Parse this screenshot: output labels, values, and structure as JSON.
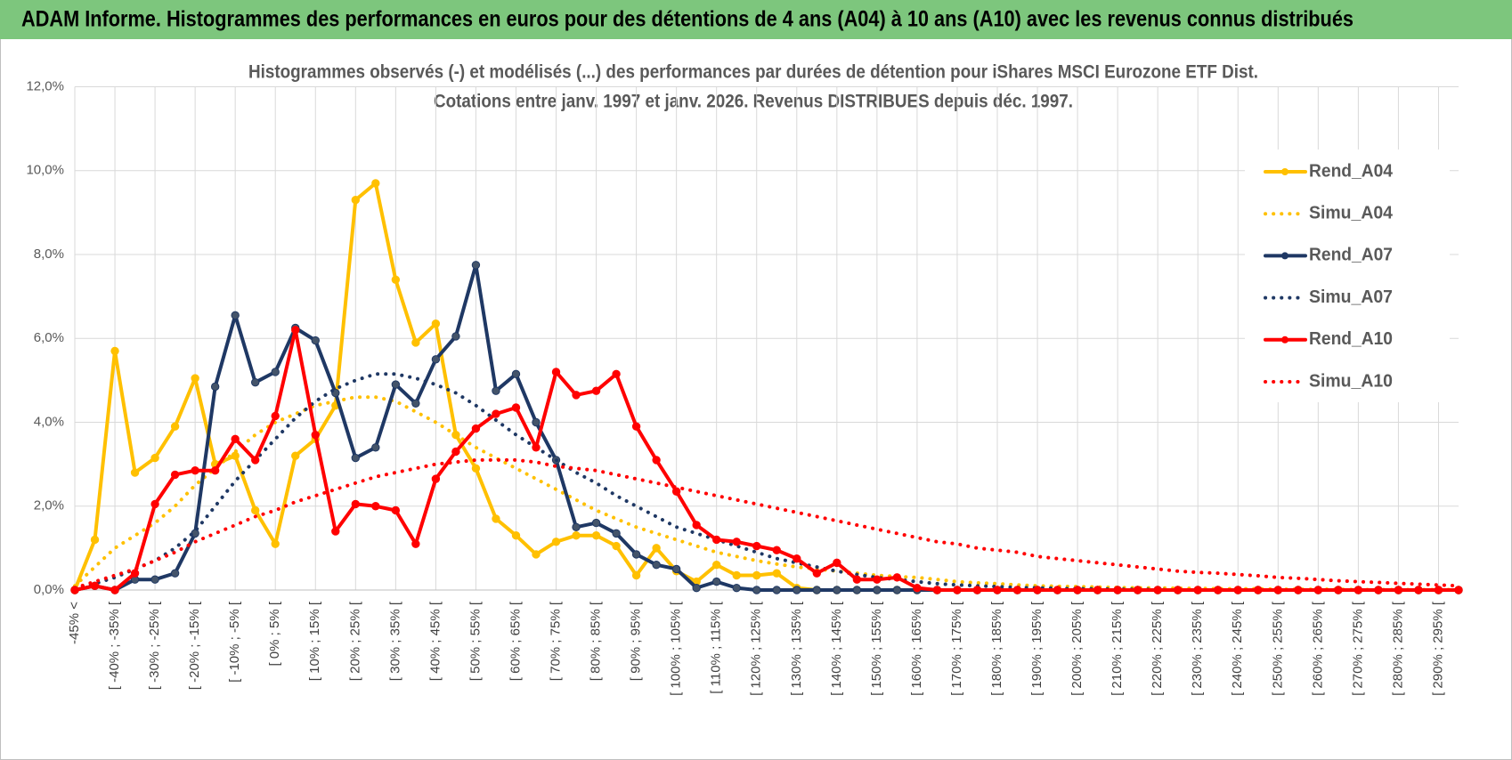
{
  "header": {
    "title": "ADAM Informe. Histogrammes des performances en euros pour des détentions de 4 ans (A04) à 10 ans (A10) avec les revenus connus distribués"
  },
  "chart_data": {
    "type": "line",
    "title": "Histogrammes observés (-) et modélisés (...) des performances par durées de détention pour iShares MSCI Eurozone ETF Dist.",
    "subtitle": "Cotations entre janv. 1997 et janv. 2026. Revenus DISTRIBUES depuis déc. 1997.",
    "categories": [
      "-45% <",
      null,
      "[ -40% ; -35% [",
      null,
      "[ -30% ; -25% [",
      null,
      "[ -20% ; -15% [",
      null,
      "[ -10% ; -5% [",
      null,
      "[ 0% ; 5% [",
      null,
      "[ 10% ; 15% [",
      null,
      "[ 20% ; 25% [",
      null,
      "[ 30% ; 35% [",
      null,
      "[ 40% ; 45% [",
      null,
      "[ 50% ; 55% [",
      null,
      "[ 60% ; 65% [",
      null,
      "[ 70% ; 75% [",
      null,
      "[ 80% ; 85% [",
      null,
      "[ 90% ; 95% [",
      null,
      "[ 100% ; 105% [",
      null,
      "[ 110% ; 115% [",
      null,
      "[ 120% ; 125% [",
      null,
      "[ 130% ; 135% [",
      null,
      "[ 140% ; 145% [",
      null,
      "[ 150% ; 155% [",
      null,
      "[ 160% ; 165% [",
      null,
      "[ 170% ; 175% [",
      null,
      "[ 180% ; 185% [",
      null,
      "[ 190% ; 195% [",
      null,
      "[ 200% ; 205% [",
      null,
      "[ 210% ; 215% [",
      null,
      "[ 220% ; 225% [",
      null,
      "[ 230% ; 235% [",
      null,
      "[ 240% ; 245% [",
      null,
      "[ 250% ; 255% [",
      null,
      "[ 260% ; 265% [",
      null,
      "[ 270% ; 275% [",
      null,
      "[ 280% ; 285% [",
      null,
      "[ 290% ; 295% [",
      null
    ],
    "ylim": [
      0,
      12
    ],
    "yticks": [
      {
        "value": 0,
        "label": "0,0%"
      },
      {
        "value": 2,
        "label": "2,0%"
      },
      {
        "value": 4,
        "label": "4,0%"
      },
      {
        "value": 6,
        "label": "6,0%"
      },
      {
        "value": 8,
        "label": "8,0%"
      },
      {
        "value": 10,
        "label": "10,0%"
      },
      {
        "value": 12,
        "label": "12,0%"
      }
    ],
    "grid": true,
    "legend": "right",
    "series": [
      {
        "name": "Rend_A04",
        "color": "#FFC000",
        "style": "solid",
        "marker": true,
        "values": [
          0,
          1.2,
          5.7,
          2.8,
          3.15,
          3.9,
          5.05,
          3.0,
          3.2,
          1.9,
          1.1,
          3.2,
          3.6,
          4.4,
          9.3,
          9.7,
          7.4,
          5.9,
          6.35,
          3.7,
          2.9,
          1.7,
          1.3,
          0.85,
          1.15,
          1.3,
          1.3,
          1.05,
          0.35,
          1.0,
          0.45,
          0.2,
          0.6,
          0.35,
          0.35,
          0.4,
          0.05,
          0,
          0,
          0,
          0,
          0,
          0,
          0,
          0,
          0,
          0,
          0,
          0,
          0,
          0,
          0,
          0,
          0,
          0,
          0,
          0,
          0,
          0,
          0,
          0,
          0,
          0,
          0,
          0,
          0,
          0,
          0,
          0,
          0
        ]
      },
      {
        "name": "Simu_A04",
        "color": "#FFC000",
        "style": "dotted",
        "marker": false,
        "values": [
          0.1,
          0.55,
          1.0,
          1.3,
          1.6,
          2.0,
          2.5,
          2.9,
          3.3,
          3.7,
          4.0,
          4.2,
          4.4,
          4.5,
          4.6,
          4.6,
          4.5,
          4.25,
          4.0,
          3.7,
          3.4,
          3.15,
          2.9,
          2.65,
          2.4,
          2.15,
          1.9,
          1.7,
          1.5,
          1.35,
          1.2,
          1.05,
          0.9,
          0.8,
          0.7,
          0.62,
          0.55,
          0.5,
          0.45,
          0.4,
          0.35,
          0.32,
          0.3,
          0.25,
          0.2,
          0.17,
          0.15,
          0.12,
          0.1,
          0.09,
          0.08,
          0.07,
          0.06,
          0.05,
          0.05,
          0.04,
          0.04,
          0.03,
          0.03,
          0.03,
          0.02,
          0.02,
          0.02,
          0.02,
          0.01,
          0.01,
          0.01,
          0.01,
          0.01,
          0.01
        ]
      },
      {
        "name": "Rend_A07",
        "color": "#1F3864",
        "style": "solid",
        "marker": true,
        "values": [
          0,
          0.1,
          0,
          0.25,
          0.25,
          0.4,
          1.35,
          4.85,
          6.55,
          4.95,
          5.2,
          6.25,
          5.95,
          4.7,
          3.15,
          3.4,
          4.9,
          4.45,
          5.5,
          6.05,
          7.75,
          4.75,
          5.15,
          4.0,
          3.1,
          1.5,
          1.6,
          1.35,
          0.85,
          0.6,
          0.5,
          0.05,
          0.2,
          0.05,
          0,
          0,
          0,
          0,
          0,
          0,
          0,
          0,
          0,
          0,
          0,
          0,
          0,
          0,
          0,
          0,
          0,
          0,
          0,
          0,
          0,
          0,
          0,
          0,
          0,
          0,
          0,
          0,
          0,
          0,
          0,
          0,
          0,
          0,
          0,
          0
        ]
      },
      {
        "name": "Simu_A07",
        "color": "#1F3864",
        "style": "dotted",
        "marker": false,
        "values": [
          0.05,
          0.15,
          0.3,
          0.5,
          0.7,
          1.0,
          1.4,
          2.0,
          2.6,
          3.1,
          3.6,
          4.1,
          4.5,
          4.8,
          5.0,
          5.15,
          5.15,
          5.05,
          4.9,
          4.7,
          4.4,
          4.05,
          3.7,
          3.4,
          3.1,
          2.8,
          2.55,
          2.25,
          2.0,
          1.75,
          1.5,
          1.35,
          1.2,
          1.05,
          0.9,
          0.75,
          0.65,
          0.55,
          0.45,
          0.37,
          0.3,
          0.25,
          0.2,
          0.15,
          0.12,
          0.1,
          0.08,
          0.06,
          0.05,
          0.04,
          0.03,
          0.03,
          0.02,
          0.02,
          0.01,
          0,
          0,
          0,
          0,
          0,
          0,
          0,
          0,
          0,
          0,
          0,
          0,
          0,
          0,
          0
        ]
      },
      {
        "name": "Rend_A10",
        "color": "#FF0000",
        "style": "solid",
        "marker": true,
        "values": [
          0,
          0.1,
          0,
          0.4,
          2.05,
          2.75,
          2.85,
          2.85,
          3.6,
          3.1,
          4.15,
          6.2,
          3.7,
          1.4,
          2.05,
          2.0,
          1.9,
          1.1,
          2.65,
          3.3,
          3.85,
          4.2,
          4.35,
          3.4,
          5.2,
          4.65,
          4.75,
          5.15,
          3.9,
          3.1,
          2.35,
          1.55,
          1.2,
          1.15,
          1.05,
          0.95,
          0.75,
          0.4,
          0.65,
          0.25,
          0.25,
          0.3,
          0.05,
          0,
          0,
          0,
          0,
          0,
          0,
          0,
          0,
          0,
          0,
          0,
          0,
          0,
          0,
          0,
          0,
          0,
          0,
          0,
          0,
          0,
          0,
          0,
          0,
          0,
          0,
          0
        ]
      },
      {
        "name": "Simu_A10",
        "color": "#FF0000",
        "style": "dotted",
        "marker": false,
        "values": [
          0.05,
          0.2,
          0.35,
          0.5,
          0.7,
          0.9,
          1.15,
          1.35,
          1.55,
          1.75,
          1.9,
          2.1,
          2.25,
          2.4,
          2.55,
          2.7,
          2.8,
          2.9,
          3.0,
          3.05,
          3.1,
          3.1,
          3.1,
          3.05,
          2.95,
          2.9,
          2.85,
          2.75,
          2.65,
          2.55,
          2.45,
          2.35,
          2.25,
          2.15,
          2.05,
          1.95,
          1.85,
          1.75,
          1.65,
          1.55,
          1.45,
          1.35,
          1.25,
          1.15,
          1.1,
          1.0,
          0.95,
          0.9,
          0.8,
          0.75,
          0.7,
          0.65,
          0.6,
          0.55,
          0.5,
          0.45,
          0.42,
          0.4,
          0.37,
          0.34,
          0.3,
          0.28,
          0.25,
          0.22,
          0.2,
          0.18,
          0.16,
          0.14,
          0.12,
          0.1
        ]
      }
    ]
  }
}
